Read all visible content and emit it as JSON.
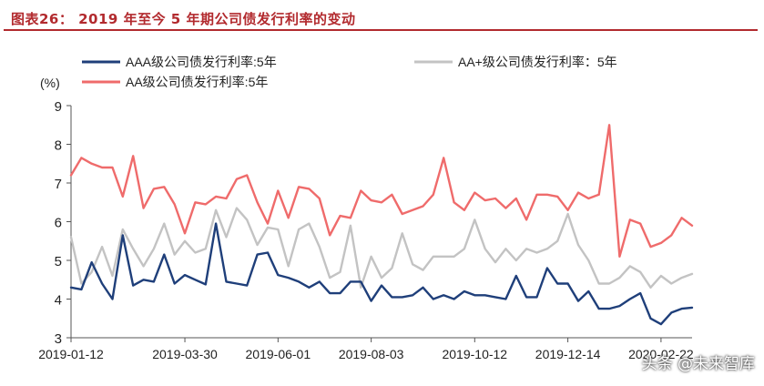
{
  "page": {
    "title": "图表26：   2019 年至今 5 年期公司债发行利率的变动",
    "watermark": "头条 @未来智库"
  },
  "chart_data": {
    "type": "line",
    "ylabel": "(%)",
    "ylim": [
      3,
      9
    ],
    "yticks": [
      3,
      4,
      5,
      6,
      7,
      8,
      9
    ],
    "x_tick_labels": [
      "2019-01-12",
      "2019-03-30",
      "2019-06-01",
      "2019-08-03",
      "2019-10-12",
      "2019-12-14",
      "2020-02-22"
    ],
    "x_tick_positions": [
      0,
      11,
      20,
      29,
      39,
      48,
      57
    ],
    "legend_placement": "top",
    "series": [
      {
        "name": "AAA级公司债发行利率:5年",
        "color": "#1f3f7a",
        "values": [
          4.3,
          4.25,
          4.95,
          4.4,
          4.0,
          5.65,
          4.35,
          4.5,
          4.45,
          5.15,
          4.4,
          4.62,
          4.5,
          4.38,
          5.95,
          4.45,
          4.4,
          4.35,
          5.15,
          5.2,
          4.62,
          4.55,
          4.45,
          4.3,
          4.45,
          4.15,
          4.15,
          4.45,
          4.45,
          3.95,
          4.35,
          4.05,
          4.05,
          4.1,
          4.3,
          4.0,
          4.1,
          4.0,
          4.2,
          4.1,
          4.1,
          4.05,
          4.0,
          4.6,
          4.05,
          4.05,
          4.8,
          4.4,
          4.4,
          3.95,
          4.2,
          3.75,
          3.75,
          3.82,
          4.0,
          4.15,
          3.5,
          3.35,
          3.65,
          3.75,
          3.78
        ]
      },
      {
        "name": "AA+级公司债发行利率：5年",
        "color": "#c3c3c3",
        "values": [
          5.6,
          4.4,
          4.7,
          5.35,
          4.6,
          5.8,
          5.3,
          4.85,
          5.3,
          5.95,
          5.15,
          5.5,
          5.2,
          5.3,
          6.3,
          5.6,
          6.35,
          6.05,
          5.4,
          5.85,
          5.8,
          4.85,
          5.8,
          5.95,
          5.35,
          4.55,
          4.7,
          5.9,
          4.3,
          5.1,
          4.55,
          4.8,
          5.7,
          4.9,
          4.75,
          5.1,
          5.1,
          5.1,
          5.3,
          6.05,
          5.3,
          4.95,
          5.3,
          5.0,
          5.3,
          5.2,
          5.3,
          5.5,
          6.2,
          5.4,
          5.0,
          4.4,
          4.4,
          4.55,
          4.85,
          4.7,
          4.3,
          4.6,
          4.4,
          4.55,
          4.65
        ]
      },
      {
        "name": "AA级公司债发行利率:5年",
        "color": "#ef6b6b",
        "values": [
          7.2,
          7.65,
          7.5,
          7.4,
          7.4,
          6.65,
          7.7,
          6.35,
          6.85,
          6.9,
          6.45,
          5.7,
          6.5,
          6.45,
          6.65,
          6.6,
          7.1,
          7.2,
          6.5,
          5.95,
          6.8,
          6.1,
          6.9,
          6.85,
          6.6,
          5.65,
          6.15,
          6.1,
          6.8,
          6.55,
          6.5,
          6.7,
          6.2,
          6.3,
          6.4,
          6.7,
          7.65,
          6.5,
          6.3,
          6.75,
          6.55,
          6.6,
          6.35,
          6.6,
          6.05,
          6.7,
          6.7,
          6.65,
          6.3,
          6.75,
          6.6,
          6.7,
          8.5,
          5.1,
          6.05,
          5.95,
          5.35,
          5.45,
          5.65,
          6.1,
          5.9
        ]
      }
    ]
  }
}
